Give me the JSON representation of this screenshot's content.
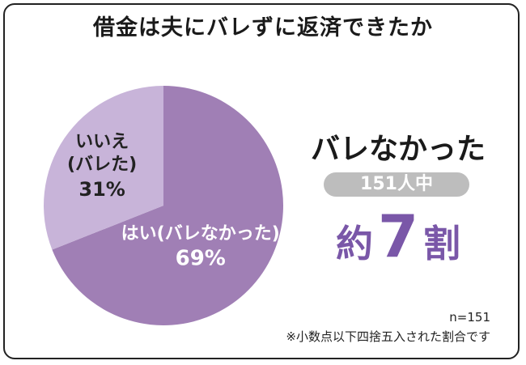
{
  "title": "借金は夫にバレずに返済できたか",
  "chart_data": {
    "type": "pie",
    "title": "借金は夫にバレずに返済できたか",
    "slices": [
      {
        "label": "はい(バレなかった)",
        "value": 69,
        "value_label": "69%",
        "color": "#a07fb5",
        "text_color": "#ffffff"
      },
      {
        "label": "いいえ\n(バレた)",
        "value": 31,
        "value_label": "31%",
        "color": "#c8b4d9",
        "text_color": "#222222"
      }
    ],
    "start_angle_deg": 0,
    "direction": "clockwise"
  },
  "callout": {
    "headline": "バレなかった",
    "badge": "151人中",
    "big_prefix": "約",
    "big_number": "7",
    "big_suffix": "割",
    "color": "#7a57a8"
  },
  "footer": {
    "n": "n=151",
    "note": "※小数点以下四捨五入された割合です"
  }
}
